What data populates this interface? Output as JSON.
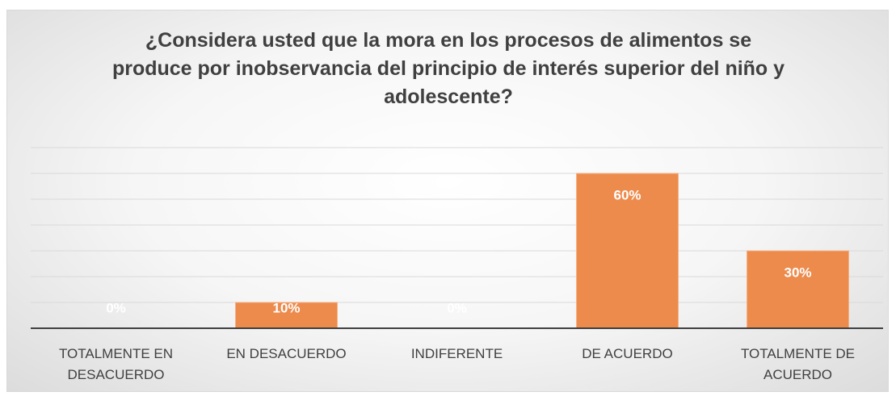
{
  "chart_data": {
    "type": "bar",
    "title": "¿Considera usted que la mora en los procesos de alimentos se produce por inobservancia del principio de interés superior del niño y adolescente?",
    "categories": [
      "TOTALMENTE EN DESACUERDO",
      "EN DESACUERDO",
      "INDIFERENTE",
      "DE ACUERDO",
      "TOTALMENTE DE ACUERDO"
    ],
    "values": [
      0,
      10,
      0,
      60,
      30
    ],
    "value_labels": [
      "0%",
      "10%",
      "0%",
      "60%",
      "30%"
    ],
    "color": "#ed8b4d",
    "ylim": [
      0,
      70
    ],
    "yticks": [
      0,
      10,
      20,
      30,
      40,
      50,
      60,
      70
    ],
    "grid": true
  }
}
